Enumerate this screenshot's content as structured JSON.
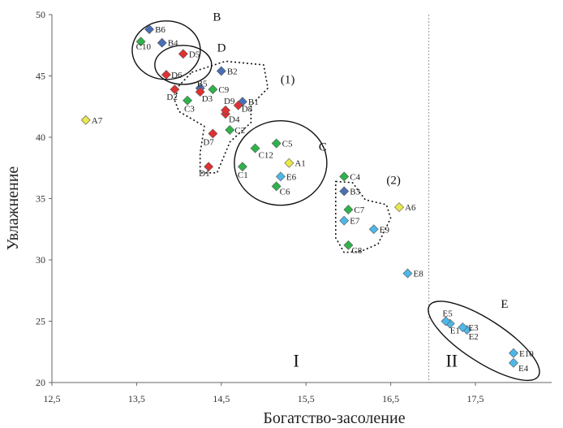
{
  "chart_data": {
    "type": "scatter",
    "xlabel": "Богатство-засоление",
    "ylabel": "Увлажнение",
    "xlim": [
      12.5,
      18.4
    ],
    "ylim": [
      20,
      50
    ],
    "xticks": [
      "12,5",
      "13,5",
      "14,5",
      "15,5",
      "16,5",
      "17,5"
    ],
    "xtick_values": [
      12.5,
      13.5,
      14.5,
      15.5,
      16.5,
      17.5
    ],
    "yticks": [
      "20",
      "25",
      "30",
      "35",
      "40",
      "45",
      "50"
    ],
    "ytick_values": [
      20,
      25,
      30,
      35,
      40,
      45,
      50
    ],
    "grid": false,
    "zone_boundary_x": 16.95,
    "series": [
      {
        "color": "#e8e84a",
        "points": [
          {
            "label": "A1",
            "x": 15.3,
            "y": 37.9
          },
          {
            "label": "A6",
            "x": 16.6,
            "y": 34.3
          },
          {
            "label": "A7",
            "x": 12.9,
            "y": 41.4
          }
        ]
      },
      {
        "color": "#4a6fb5",
        "points": [
          {
            "label": "B1",
            "x": 14.75,
            "y": 42.9
          },
          {
            "label": "B2",
            "x": 14.5,
            "y": 45.4
          },
          {
            "label": "B3",
            "x": 15.95,
            "y": 35.6
          },
          {
            "label": "B4",
            "x": 13.8,
            "y": 47.7
          },
          {
            "label": "B5",
            "x": 14.25,
            "y": 44.0
          },
          {
            "label": "B6",
            "x": 13.65,
            "y": 48.8
          }
        ]
      },
      {
        "color": "#2db34a",
        "points": [
          {
            "label": "C1",
            "x": 14.75,
            "y": 37.6
          },
          {
            "label": "C2",
            "x": 14.6,
            "y": 40.6
          },
          {
            "label": "C3",
            "x": 14.1,
            "y": 43.0
          },
          {
            "label": "C4",
            "x": 15.95,
            "y": 36.8
          },
          {
            "label": "C5",
            "x": 15.15,
            "y": 39.5
          },
          {
            "label": "C6",
            "x": 15.15,
            "y": 36.0
          },
          {
            "label": "C7",
            "x": 16.0,
            "y": 34.1
          },
          {
            "label": "C8",
            "x": 16.0,
            "y": 31.2
          },
          {
            "label": "C9",
            "x": 14.4,
            "y": 43.9
          },
          {
            "label": "C10",
            "x": 13.55,
            "y": 47.8
          },
          {
            "label": "C12",
            "x": 14.9,
            "y": 39.1
          }
        ]
      },
      {
        "color": "#e03030",
        "points": [
          {
            "label": "D1",
            "x": 14.35,
            "y": 37.6
          },
          {
            "label": "D2",
            "x": 13.95,
            "y": 43.9
          },
          {
            "label": "D3",
            "x": 14.25,
            "y": 43.7
          },
          {
            "label": "D4",
            "x": 14.55,
            "y": 41.9
          },
          {
            "label": "D5",
            "x": 14.05,
            "y": 46.8
          },
          {
            "label": "D6",
            "x": 13.85,
            "y": 45.1
          },
          {
            "label": "D7",
            "x": 14.4,
            "y": 40.3
          },
          {
            "label": "D8",
            "x": 14.7,
            "y": 42.6
          },
          {
            "label": "D9",
            "x": 14.55,
            "y": 42.2
          }
        ]
      },
      {
        "color": "#4db8e8",
        "points": [
          {
            "label": "E1",
            "x": 17.2,
            "y": 24.8
          },
          {
            "label": "E2",
            "x": 17.4,
            "y": 24.3
          },
          {
            "label": "E3",
            "x": 17.35,
            "y": 24.5
          },
          {
            "label": "E4",
            "x": 17.95,
            "y": 21.6
          },
          {
            "label": "E5",
            "x": 17.15,
            "y": 25.0
          },
          {
            "label": "E6",
            "x": 15.2,
            "y": 36.8
          },
          {
            "label": "E7",
            "x": 15.95,
            "y": 33.2
          },
          {
            "label": "E8",
            "x": 16.7,
            "y": 28.9
          },
          {
            "label": "E9",
            "x": 16.3,
            "y": 32.5
          },
          {
            "label": "E10",
            "x": 17.95,
            "y": 22.4
          }
        ]
      }
    ],
    "annotations": {
      "group_labels": [
        "B",
        "C",
        "D",
        "E",
        "(1)",
        "(2)"
      ],
      "zone_labels": [
        "I",
        "II"
      ]
    }
  }
}
